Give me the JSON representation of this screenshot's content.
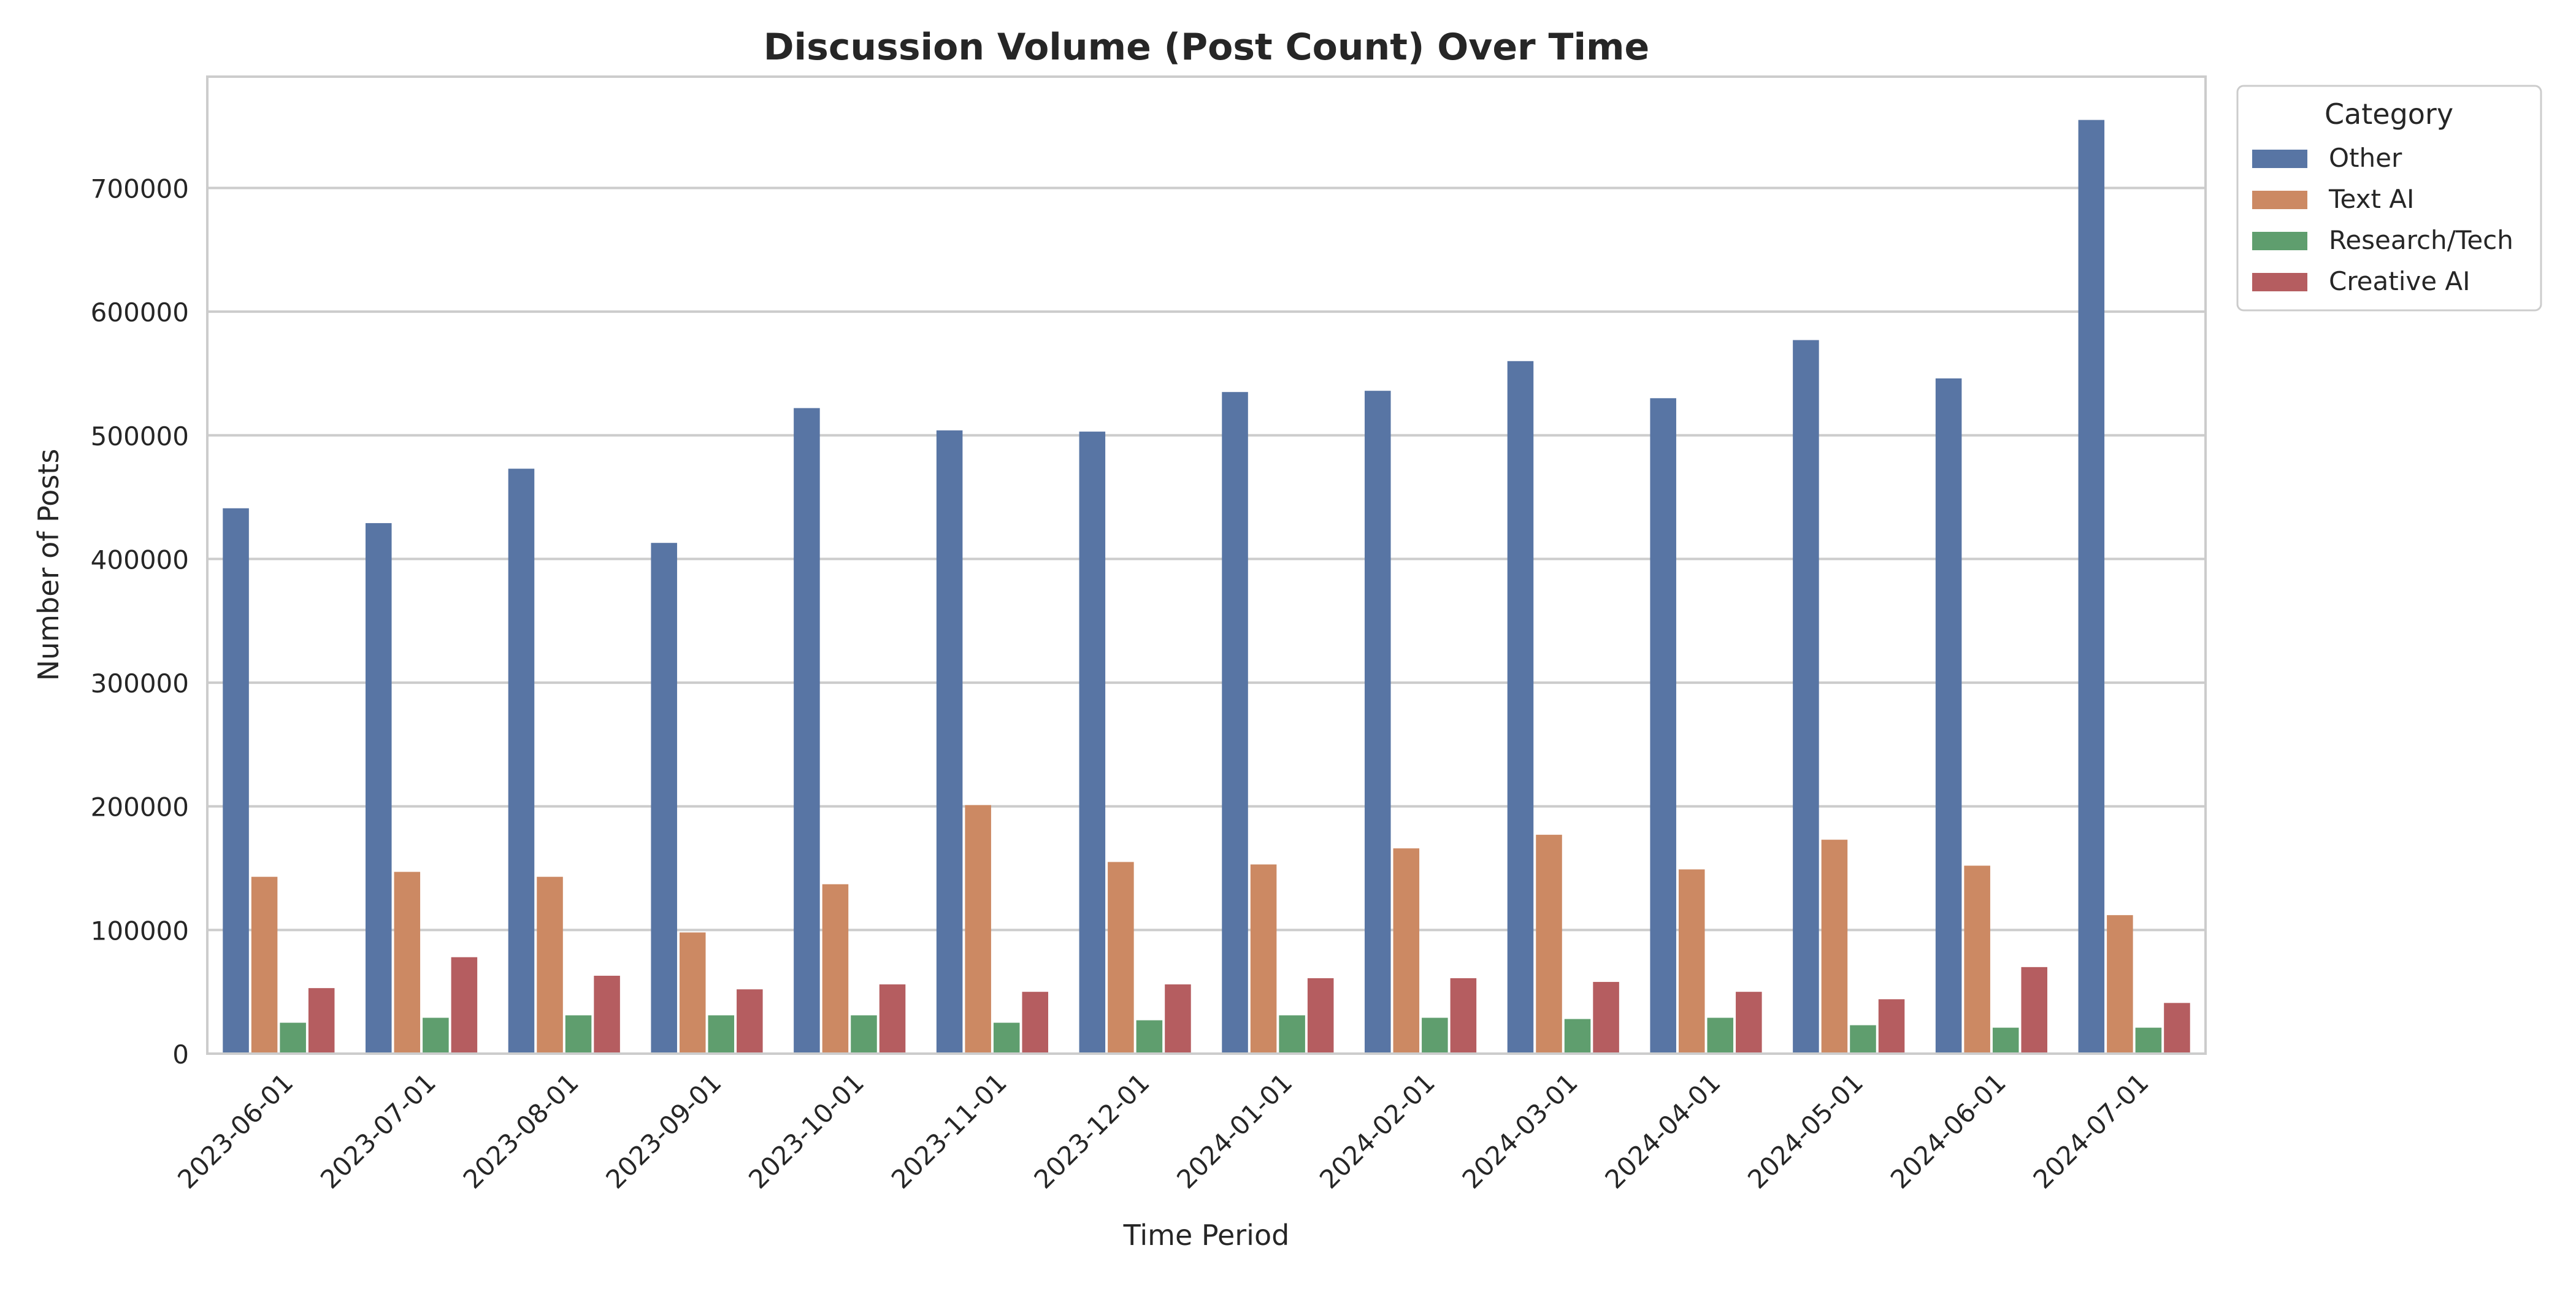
{
  "chart_data": {
    "type": "bar",
    "title": "Discussion Volume (Post Count) Over Time",
    "xlabel": "Time Period",
    "ylabel": "Number of Posts",
    "ylim": [
      0,
      790000
    ],
    "yticks": [
      0,
      100000,
      200000,
      300000,
      400000,
      500000,
      600000,
      700000
    ],
    "grid": true,
    "legend": {
      "title": "Category",
      "placement": "outside-top-right"
    },
    "categories": [
      "2023-06-01",
      "2023-07-01",
      "2023-08-01",
      "2023-09-01",
      "2023-10-01",
      "2023-11-01",
      "2023-12-01",
      "2024-01-01",
      "2024-02-01",
      "2024-03-01",
      "2024-04-01",
      "2024-05-01",
      "2024-06-01",
      "2024-07-01"
    ],
    "series": [
      {
        "name": "Other",
        "color": "#5875a4",
        "values": [
          441000,
          429000,
          473000,
          413000,
          522000,
          504000,
          503000,
          535000,
          536000,
          560000,
          530000,
          577000,
          546000,
          755000
        ]
      },
      {
        "name": "Text AI",
        "color": "#cc8963",
        "values": [
          143000,
          147000,
          143000,
          98000,
          137000,
          201000,
          155000,
          153000,
          166000,
          177000,
          149000,
          173000,
          152000,
          112000
        ]
      },
      {
        "name": "Research/Tech",
        "color": "#5f9e6e",
        "values": [
          25000,
          29000,
          31000,
          31000,
          31000,
          25000,
          27000,
          31000,
          29000,
          28000,
          29000,
          23000,
          21000,
          21000
        ]
      },
      {
        "name": "Creative AI",
        "color": "#b55d60",
        "values": [
          53000,
          78000,
          63000,
          52000,
          56000,
          50000,
          56000,
          61000,
          61000,
          58000,
          50000,
          44000,
          70000,
          41000
        ]
      }
    ]
  }
}
